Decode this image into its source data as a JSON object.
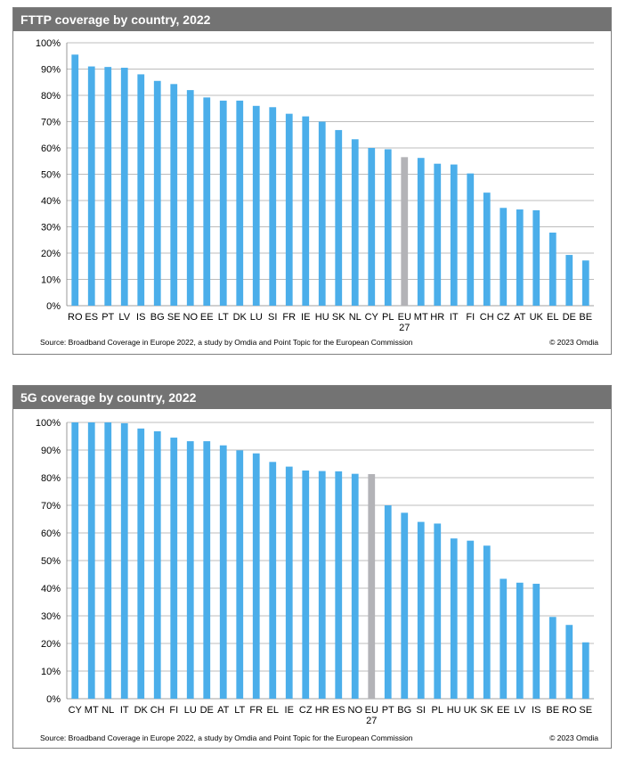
{
  "colors": {
    "bar": "#4baeea",
    "highlight": "#b3b3b7",
    "header": "#737373",
    "grid": "#a6a6a6"
  },
  "charts": [
    {
      "title": "FTTP coverage by country, 2022",
      "source": "Source: Broadband Coverage in Europe 2022, a study by Omdia and Point Topic for the European Commission",
      "copyright": "© 2023 Omdia"
    },
    {
      "title": "5G coverage by country, 2022",
      "source": "Source: Broadband Coverage in Europe 2022, a study by Omdia and Point Topic for the European Commission",
      "copyright": "© 2023 Omdia"
    }
  ],
  "chart_data": [
    {
      "type": "bar",
      "title": "FTTP coverage by country, 2022",
      "categories": [
        "RO",
        "ES",
        "PT",
        "LV",
        "IS",
        "BG",
        "SE",
        "NO",
        "EE",
        "LT",
        "DK",
        "LU",
        "SI",
        "FR",
        "IE",
        "HU",
        "SK",
        "NL",
        "CY",
        "PL",
        "EU 27",
        "MT",
        "HR",
        "IT",
        "FI",
        "CH",
        "CZ",
        "AT",
        "UK",
        "EL",
        "DE",
        "BE"
      ],
      "values": [
        95.5,
        91,
        90.8,
        90.5,
        88,
        85.5,
        84.3,
        82,
        79.2,
        78,
        78,
        76,
        75.5,
        73,
        72,
        70,
        66.8,
        63.3,
        60,
        59.5,
        56.5,
        56.2,
        54,
        53.7,
        50.3,
        43,
        37.2,
        36.6,
        36.3,
        27.8,
        19.3,
        17.2
      ],
      "highlight": "EU 27",
      "ylim": [
        0,
        100
      ],
      "yticks": [
        "0%",
        "10%",
        "20%",
        "30%",
        "40%",
        "50%",
        "60%",
        "70%",
        "80%",
        "90%",
        "100%"
      ],
      "xlabel": "",
      "ylabel": "",
      "grid": true,
      "legend": "none"
    },
    {
      "type": "bar",
      "title": "5G coverage by country, 2022",
      "categories": [
        "CY",
        "MT",
        "NL",
        "IT",
        "DK",
        "CH",
        "FI",
        "LU",
        "DE",
        "AT",
        "LT",
        "FR",
        "EL",
        "IE",
        "CZ",
        "HR",
        "ES",
        "NO",
        "EU 27",
        "PT",
        "BG",
        "SI",
        "PL",
        "HU",
        "UK",
        "SK",
        "EE",
        "LV",
        "IS",
        "BE",
        "RO",
        "SE"
      ],
      "values": [
        100,
        100,
        100,
        99.7,
        97.8,
        96.8,
        94.5,
        93.2,
        93.2,
        91.7,
        89.9,
        88.8,
        85.7,
        84,
        82.6,
        82.4,
        82.3,
        81.4,
        81.3,
        70,
        67.3,
        64,
        63.4,
        58,
        57.2,
        55.4,
        43.4,
        42,
        41.6,
        29.6,
        26.7,
        20.4
      ],
      "highlight": "EU 27",
      "ylim": [
        0,
        100
      ],
      "yticks": [
        "0%",
        "10%",
        "20%",
        "30%",
        "40%",
        "50%",
        "60%",
        "70%",
        "80%",
        "90%",
        "100%"
      ],
      "xlabel": "",
      "ylabel": "",
      "grid": true,
      "legend": "none"
    }
  ]
}
